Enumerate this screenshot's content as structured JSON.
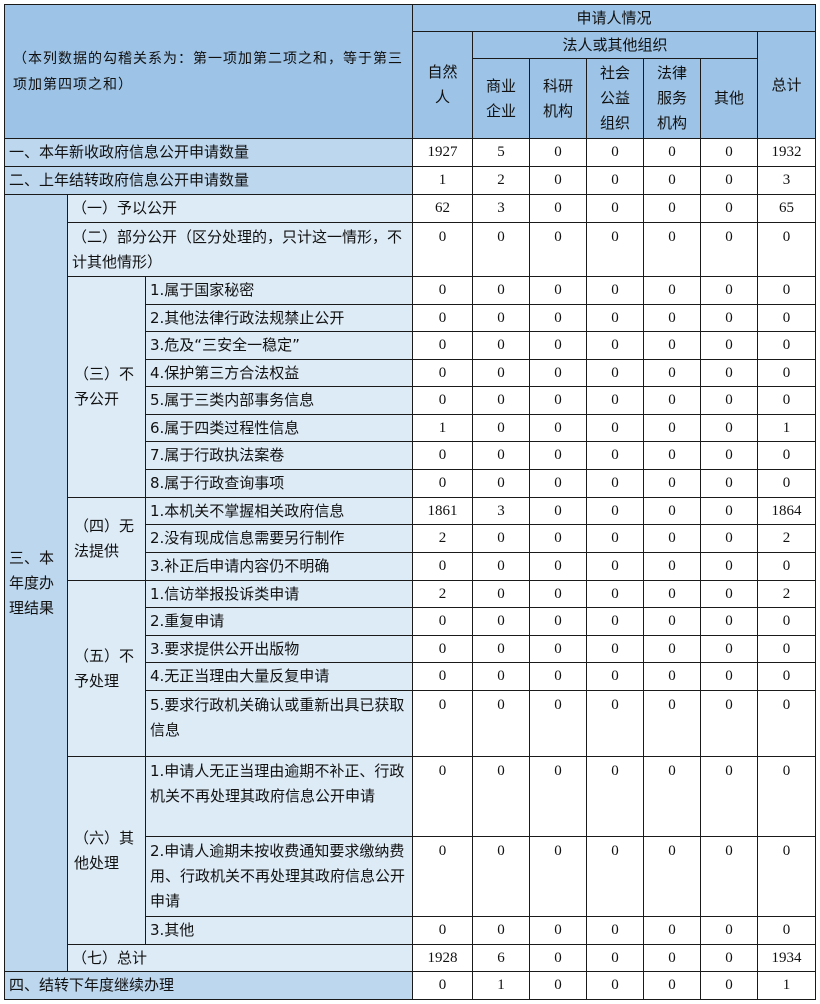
{
  "header": {
    "note": "（本列数据的勾稽关系为：第一项加第二项之和，等于第三项加第四项之和）",
    "applicant": "申请人情况",
    "legal_org": "法人或其他组织",
    "natural_person": "自然人",
    "business": "商业企业",
    "research": "科研机构",
    "public_welfare": "社会公益组织",
    "legal_service": "法律服务机构",
    "other": "其他",
    "total": "总计"
  },
  "section3_label": "三、本年度办理结果",
  "groups": {
    "not_public": "（三）不予公开",
    "cannot_provide": "（四）无法提供",
    "not_processed": "（五）不予处理",
    "other_processing": "（六）其他处理"
  },
  "rows": [
    {
      "label": "一、本年新收政府信息公开申请数量",
      "values": [
        1927,
        5,
        0,
        0,
        0,
        0,
        1932
      ]
    },
    {
      "label": "二、上年结转政府信息公开申请数量",
      "values": [
        1,
        2,
        0,
        0,
        0,
        0,
        3
      ]
    },
    {
      "label": "（一）予以公开",
      "values": [
        62,
        3,
        0,
        0,
        0,
        0,
        65
      ]
    },
    {
      "label": "（二）部分公开（区分处理的，只计这一情形，不计其他情形）",
      "values": [
        0,
        0,
        0,
        0,
        0,
        0,
        0
      ]
    },
    {
      "label": "1.属于国家秘密",
      "values": [
        0,
        0,
        0,
        0,
        0,
        0,
        0
      ]
    },
    {
      "label": "2.其他法律行政法规禁止公开",
      "values": [
        0,
        0,
        0,
        0,
        0,
        0,
        0
      ]
    },
    {
      "label": "3.危及“三安全一稳定”",
      "values": [
        0,
        0,
        0,
        0,
        0,
        0,
        0
      ]
    },
    {
      "label": "4.保护第三方合法权益",
      "values": [
        0,
        0,
        0,
        0,
        0,
        0,
        0
      ]
    },
    {
      "label": "5.属于三类内部事务信息",
      "values": [
        0,
        0,
        0,
        0,
        0,
        0,
        0
      ]
    },
    {
      "label": "6.属于四类过程性信息",
      "values": [
        1,
        0,
        0,
        0,
        0,
        0,
        1
      ]
    },
    {
      "label": "7.属于行政执法案卷",
      "values": [
        0,
        0,
        0,
        0,
        0,
        0,
        0
      ]
    },
    {
      "label": "8.属于行政查询事项",
      "values": [
        0,
        0,
        0,
        0,
        0,
        0,
        0
      ]
    },
    {
      "label": "1.本机关不掌握相关政府信息",
      "values": [
        1861,
        3,
        0,
        0,
        0,
        0,
        1864
      ]
    },
    {
      "label": "2.没有现成信息需要另行制作",
      "values": [
        2,
        0,
        0,
        0,
        0,
        0,
        2
      ]
    },
    {
      "label": "3.补正后申请内容仍不明确",
      "values": [
        0,
        0,
        0,
        0,
        0,
        0,
        0
      ]
    },
    {
      "label": "1.信访举报投诉类申请",
      "values": [
        2,
        0,
        0,
        0,
        0,
        0,
        2
      ]
    },
    {
      "label": "2.重复申请",
      "values": [
        0,
        0,
        0,
        0,
        0,
        0,
        0
      ]
    },
    {
      "label": "3.要求提供公开出版物",
      "values": [
        0,
        0,
        0,
        0,
        0,
        0,
        0
      ]
    },
    {
      "label": "4.无正当理由大量反复申请",
      "values": [
        0,
        0,
        0,
        0,
        0,
        0,
        0
      ]
    },
    {
      "label": "5.要求行政机关确认或重新出具已获取信息",
      "values": [
        0,
        0,
        0,
        0,
        0,
        0,
        0
      ]
    },
    {
      "label": "1.申请人无正当理由逾期不补正、行政机关不再处理其政府信息公开申请",
      "values": [
        0,
        0,
        0,
        0,
        0,
        0,
        0
      ]
    },
    {
      "label": "2.申请人逾期未按收费通知要求缴纳费用、行政机关不再处理其政府信息公开申请",
      "values": [
        0,
        0,
        0,
        0,
        0,
        0,
        0
      ]
    },
    {
      "label": "3.其他",
      "values": [
        0,
        0,
        0,
        0,
        0,
        0,
        0
      ]
    },
    {
      "label": "（七）总计",
      "values": [
        1928,
        6,
        0,
        0,
        0,
        0,
        1934
      ]
    },
    {
      "label": "四、结转下年度继续办理",
      "values": [
        0,
        1,
        0,
        0,
        0,
        0,
        1
      ]
    }
  ]
}
